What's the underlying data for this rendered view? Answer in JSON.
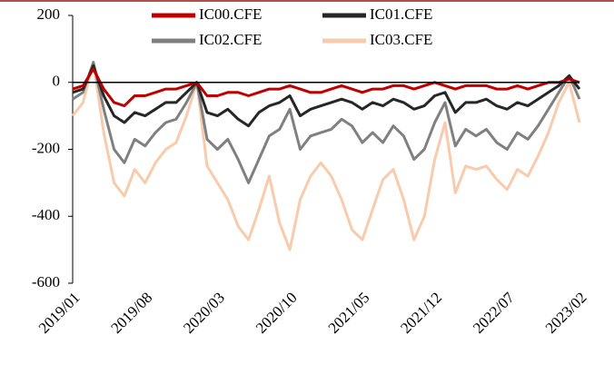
{
  "chart_data": {
    "type": "line",
    "categories": [
      "2019/01",
      null,
      null,
      null,
      null,
      null,
      null,
      "2019/08",
      null,
      null,
      null,
      null,
      null,
      null,
      "2020/03",
      null,
      null,
      null,
      null,
      null,
      null,
      "2020/10",
      null,
      null,
      null,
      null,
      null,
      null,
      "2021/05",
      null,
      null,
      null,
      null,
      null,
      null,
      "2021/12",
      null,
      null,
      null,
      null,
      null,
      null,
      "2022/07",
      null,
      null,
      null,
      null,
      null,
      null,
      "2023/02"
    ],
    "series": [
      {
        "name": "IC00.CFE",
        "color": "#c00000",
        "values": [
          -20,
          -10,
          40,
          -20,
          -60,
          -70,
          -40,
          -40,
          -30,
          -20,
          -20,
          -10,
          0,
          -40,
          -40,
          -30,
          -30,
          -40,
          -30,
          -20,
          -20,
          -10,
          -20,
          -30,
          -30,
          -20,
          -10,
          -20,
          -30,
          -20,
          -20,
          -10,
          -10,
          -20,
          -10,
          0,
          -10,
          -20,
          -10,
          -10,
          -10,
          -20,
          -20,
          -10,
          -20,
          -10,
          0,
          0,
          10,
          0
        ]
      },
      {
        "name": "IC01.CFE",
        "color": "#262626",
        "values": [
          -30,
          -20,
          50,
          -40,
          -100,
          -120,
          -90,
          -100,
          -80,
          -60,
          -60,
          -30,
          0,
          -90,
          -100,
          -80,
          -110,
          -130,
          -90,
          -70,
          -60,
          -40,
          -100,
          -80,
          -70,
          -60,
          -50,
          -60,
          -80,
          -60,
          -70,
          -50,
          -60,
          -80,
          -70,
          -40,
          -30,
          -90,
          -60,
          -60,
          -50,
          -70,
          -80,
          -60,
          -70,
          -50,
          -30,
          -10,
          20,
          -20
        ]
      },
      {
        "name": "IC02.CFE",
        "color": "#808080",
        "values": [
          -50,
          -30,
          60,
          -80,
          -200,
          -240,
          -170,
          -190,
          -150,
          -120,
          -110,
          -60,
          0,
          -170,
          -200,
          -170,
          -230,
          -300,
          -230,
          -160,
          -140,
          -80,
          -200,
          -160,
          -150,
          -140,
          -110,
          -130,
          -180,
          -150,
          -180,
          -130,
          -160,
          -230,
          -200,
          -120,
          -60,
          -190,
          -140,
          -160,
          -140,
          -180,
          -200,
          -150,
          -170,
          -130,
          -80,
          -30,
          20,
          -50
        ]
      },
      {
        "name": "IC03.CFE",
        "color": "#f8cbad",
        "values": [
          -100,
          -60,
          60,
          -150,
          -300,
          -340,
          -260,
          -300,
          -240,
          -200,
          -180,
          -100,
          0,
          -250,
          -300,
          -350,
          -430,
          -470,
          -380,
          -280,
          -420,
          -500,
          -350,
          -280,
          -240,
          -280,
          -350,
          -440,
          -470,
          -380,
          -290,
          -260,
          -350,
          -470,
          -400,
          -230,
          -120,
          -330,
          -250,
          -260,
          -250,
          -290,
          -320,
          -260,
          -280,
          -220,
          -150,
          -60,
          0,
          -120
        ]
      }
    ],
    "ylim": [
      -600,
      200
    ],
    "yticks": [
      -600,
      -400,
      -200,
      0,
      200
    ]
  }
}
